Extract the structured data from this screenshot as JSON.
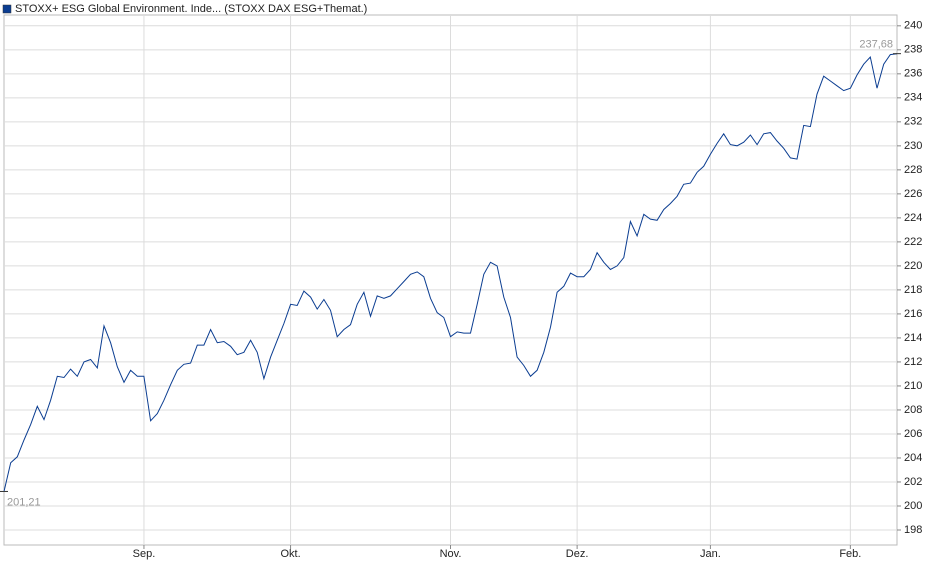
{
  "chart_data": {
    "type": "line",
    "categories": [
      null,
      null,
      null,
      null,
      null,
      null,
      null,
      null,
      null,
      null,
      null,
      null,
      null,
      null,
      null,
      null,
      null,
      null,
      null,
      null,
      null,
      "Sep.",
      null,
      null,
      null,
      null,
      null,
      null,
      null,
      null,
      null,
      null,
      null,
      null,
      null,
      null,
      null,
      null,
      null,
      null,
      null,
      null,
      null,
      "Okt.",
      null,
      null,
      null,
      null,
      null,
      null,
      null,
      null,
      null,
      null,
      null,
      null,
      null,
      null,
      null,
      null,
      null,
      null,
      null,
      null,
      null,
      null,
      null,
      "Nov.",
      null,
      null,
      null,
      null,
      null,
      null,
      null,
      null,
      null,
      null,
      null,
      null,
      null,
      null,
      null,
      null,
      null,
      null,
      "Dez.",
      null,
      null,
      null,
      null,
      null,
      null,
      null,
      null,
      null,
      null,
      null,
      null,
      null,
      null,
      null,
      null,
      null,
      null,
      null,
      "Jan.",
      null,
      null,
      null,
      null,
      null,
      null,
      null,
      null,
      null,
      null,
      null,
      null,
      null,
      null,
      null,
      null,
      null,
      null,
      null,
      null,
      "Feb.",
      null,
      null,
      null,
      null,
      null,
      null,
      null
    ],
    "series": [
      {
        "name": "STOXX+ ESG Global Environment. Inde... (STOXX DAX ESG+Themat.)",
        "color": "#0b3d91",
        "values": [
          201.21,
          203.6,
          204.1,
          205.5,
          206.8,
          208.3,
          207.2,
          208.8,
          210.8,
          210.7,
          211.4,
          210.8,
          212.0,
          212.2,
          211.5,
          215.0,
          213.6,
          211.6,
          210.3,
          211.3,
          210.8,
          210.8,
          207.1,
          207.7,
          208.8,
          210.1,
          211.3,
          211.8,
          211.9,
          213.4,
          213.4,
          214.7,
          213.6,
          213.7,
          213.3,
          212.6,
          212.8,
          213.8,
          212.8,
          210.6,
          212.4,
          213.8,
          215.2,
          216.8,
          216.7,
          217.9,
          217.4,
          216.4,
          217.2,
          216.3,
          214.1,
          214.7,
          215.1,
          216.8,
          217.8,
          215.8,
          217.5,
          217.3,
          217.5,
          218.1,
          218.7,
          219.3,
          219.5,
          219.1,
          217.3,
          216.1,
          215.7,
          214.1,
          214.5,
          214.4,
          214.4,
          216.8,
          219.3,
          220.3,
          220.0,
          217.4,
          215.7,
          212.4,
          211.7,
          210.8,
          211.3,
          212.8,
          214.9,
          217.8,
          218.3,
          219.4,
          219.1,
          219.1,
          219.7,
          221.1,
          220.3,
          219.7,
          220.0,
          220.7,
          223.7,
          222.5,
          224.3,
          223.9,
          223.8,
          224.7,
          225.2,
          225.8,
          226.8,
          226.9,
          227.8,
          228.3,
          229.3,
          230.2,
          231.0,
          230.1,
          230.0,
          230.3,
          230.9,
          230.1,
          231.0,
          231.1,
          230.4,
          229.8,
          229.0,
          228.9,
          231.7,
          231.6,
          234.3,
          235.8,
          235.4,
          235.0,
          234.6,
          234.8,
          235.9,
          236.8,
          237.4,
          234.8,
          236.8,
          237.6,
          237.68
        ]
      }
    ],
    "annotations": [
      {
        "value": 201.21,
        "label": "201,21"
      },
      {
        "value": 237.68,
        "label": "237,68"
      }
    ],
    "ylim": [
      196.75,
      240.9
    ],
    "yticks": [
      198,
      200,
      202,
      204,
      206,
      208,
      210,
      212,
      214,
      216,
      218,
      220,
      222,
      224,
      226,
      228,
      230,
      232,
      234,
      236,
      238,
      240
    ],
    "grid": true
  }
}
